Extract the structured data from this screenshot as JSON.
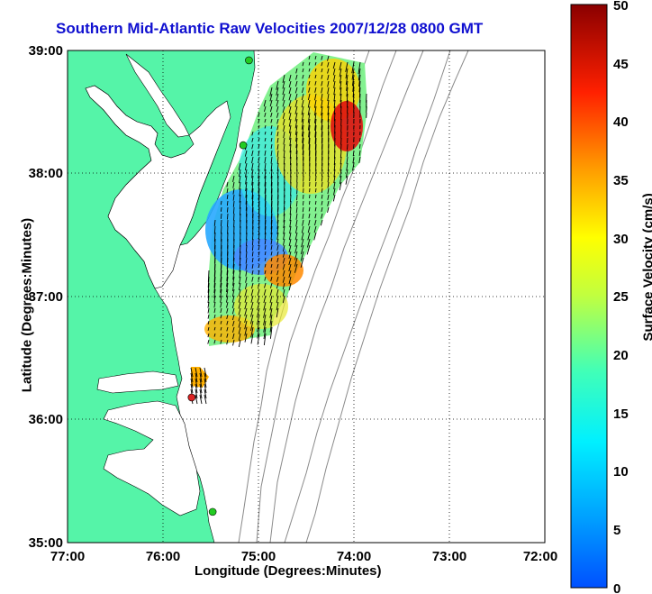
{
  "title": "Southern Mid-Atlantic Raw Velocities 2007/12/28 0800 GMT",
  "axes": {
    "xlabel": "Longitude (Degrees:Minutes)",
    "ylabel": "Latitude (Degrees:Minutes)",
    "x_ticks": [
      "77:00",
      "76:00",
      "75:00",
      "74:00",
      "73:00",
      "72:00"
    ],
    "y_ticks": [
      "39:00",
      "38:00",
      "37:00",
      "36:00",
      "35:00"
    ],
    "x_range_deg_west": [
      77,
      72
    ],
    "y_range_deg_north": [
      35,
      39
    ],
    "grid": "dotted"
  },
  "colorbar": {
    "label": "Surface Velocity (cm/s)",
    "ticks": [
      "50",
      "45",
      "40",
      "35",
      "30",
      "25",
      "20",
      "15",
      "10",
      "5",
      "0"
    ],
    "range": [
      0,
      50
    ],
    "colormap": "jet"
  },
  "colors": {
    "land": "#55f4a8",
    "coast": "#000000",
    "bathymetry": "#8a8a8a",
    "title": "#1010d0",
    "station_ok": "#22cc22",
    "station_alert": "#dd2222"
  },
  "stations": [
    {
      "status": "ok",
      "lon": -75.1,
      "lat": 38.92
    },
    {
      "status": "ok",
      "lon": -75.16,
      "lat": 38.23
    },
    {
      "status": "alert",
      "lon": -75.7,
      "lat": 36.18
    },
    {
      "status": "ok",
      "lon": -75.48,
      "lat": 35.25
    }
  ]
}
